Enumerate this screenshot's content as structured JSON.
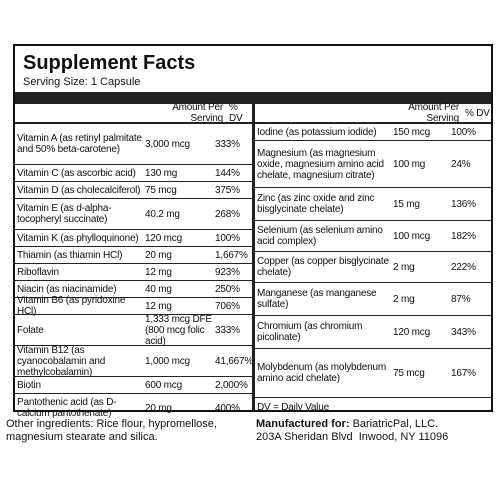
{
  "label": {
    "title": "Supplement Facts",
    "serving_size": "Serving Size: 1 Capsule",
    "left_table": {
      "header": {
        "amount": "Amount Per Serving",
        "dv": "% DV"
      },
      "rows": [
        [
          "Vitamin A (as retinyl palmitate and 50% beta-carotene)",
          "3,000 mcg",
          "333%"
        ],
        [
          "Vitamin C (as ascorbic acid)",
          "130 mg",
          "144%"
        ],
        [
          "Vitamin D (as cholecalciferol)",
          "75 mcg",
          "375%"
        ],
        [
          "Vitamin E (as d-alpha-tocopheryl succinate)",
          "40.2 mg",
          "268%"
        ],
        [
          "Vitamin K (as phylloquinone)",
          "120 mcg",
          "100%"
        ],
        [
          "Thiamin (as thiamin HCl)",
          "20 mg",
          "1,667%"
        ],
        [
          "Riboflavin",
          "12 mg",
          "923%"
        ],
        [
          "Niacin (as niacinamide)",
          "40 mg",
          "250%"
        ],
        [
          "Vitamin B6 (as pyridoxine HCl)",
          "12 mg",
          "706%"
        ],
        [
          "Folate",
          "1,333 mcg DFE (800 mcg folic acid)",
          "333%"
        ],
        [
          "Vitamin B12 (as cyanocobalamin and methylcobalamin)",
          "1,000 mcg",
          "41,667%"
        ],
        [
          "Biotin",
          "600 mcg",
          "2,000%"
        ],
        [
          "Pantothenic acid (as D-calcium pantothenate)",
          "20 mg",
          "400%"
        ]
      ]
    },
    "right_table": {
      "header": {
        "amount": "Amount Per Serving",
        "dv": "% DV"
      },
      "rows": [
        [
          "Iodine (as potassium iodide)",
          "150 mcg",
          "100%"
        ],
        [
          "Magnesium (as magnesium oxide, magnesium amino acid chelate, magnesium citrate)",
          "100 mg",
          "24%"
        ],
        [
          "Zinc (as zinc oxide and zinc bisglycinate chelate)",
          "15 mg",
          "136%"
        ],
        [
          "Selenium (as selenium amino acid complex)",
          "100 mcg",
          "182%"
        ],
        [
          "Copper (as copper bisglycinate chelate)",
          "2 mg",
          "222%"
        ],
        [
          "Manganese (as manganese sulfate)",
          "2 mg",
          "87%"
        ],
        [
          "Chromium (as chromium picolinate)",
          "120 mcg",
          "343%"
        ],
        [
          "Molybdenum (as molybdenum amino acid chelate)",
          "75 mcg",
          "167%"
        ]
      ],
      "footnote": "DV = Daily Value"
    }
  },
  "other_ingredients": "Other ingredients: Rice flour, hypromellose, magnesium stearate and silica.",
  "manufacturer": {
    "label": "Manufactured for:",
    "name": "BariatricPal, LLC.",
    "address": "203A Sheridan Blvd  Inwood, NY 11096"
  }
}
